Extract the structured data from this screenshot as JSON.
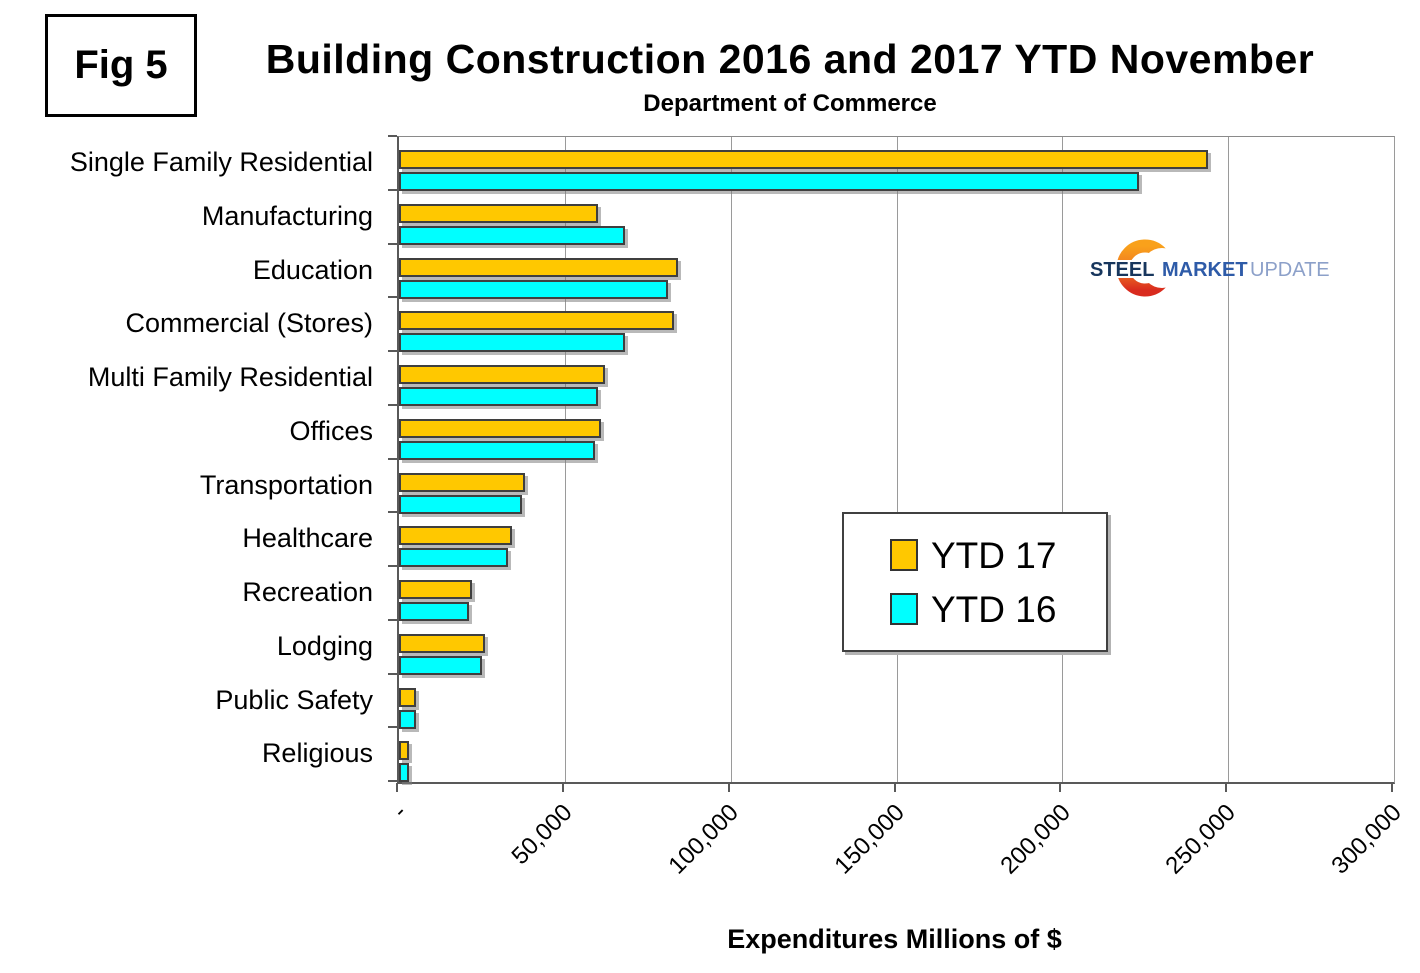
{
  "figure_label": "Fig 5",
  "title": "Building Construction 2016 and 2017 YTD November",
  "subtitle": "Department of Commerce",
  "logo": {
    "steel": "STEEL",
    "market": "MARKET",
    "update": "UPDATE"
  },
  "chart_data": {
    "type": "bar",
    "orientation": "horizontal",
    "title": "Building Construction 2016 and 2017 YTD November",
    "subtitle": "Department of Commerce",
    "xlabel": "Expenditures Millions of $",
    "ylabel": "",
    "xlim": [
      0,
      300000
    ],
    "xticks": [
      0,
      50000,
      100000,
      150000,
      200000,
      250000,
      300000
    ],
    "xtick_labels": [
      "-",
      "50,000",
      "100,000",
      "150,000",
      "200,000",
      "250,000",
      "300,000"
    ],
    "grid": true,
    "legend_position": "center-right",
    "categories": [
      "Single Family Residential",
      "Manufacturing",
      "Education",
      "Commercial (Stores)",
      "Multi Family Residential",
      "Offices",
      "Transportation",
      "Healthcare",
      "Recreation",
      "Lodging",
      "Public Safety",
      "Religious"
    ],
    "series": [
      {
        "name": "YTD 17",
        "color": "#FFC800",
        "values": [
          244000,
          60000,
          84000,
          83000,
          62000,
          61000,
          38000,
          34000,
          22000,
          26000,
          5000,
          3000
        ]
      },
      {
        "name": "YTD 16",
        "color": "#00FFFF",
        "values": [
          223000,
          68000,
          81000,
          68000,
          60000,
          59000,
          37000,
          33000,
          21000,
          25000,
          5000,
          3000
        ]
      }
    ]
  }
}
